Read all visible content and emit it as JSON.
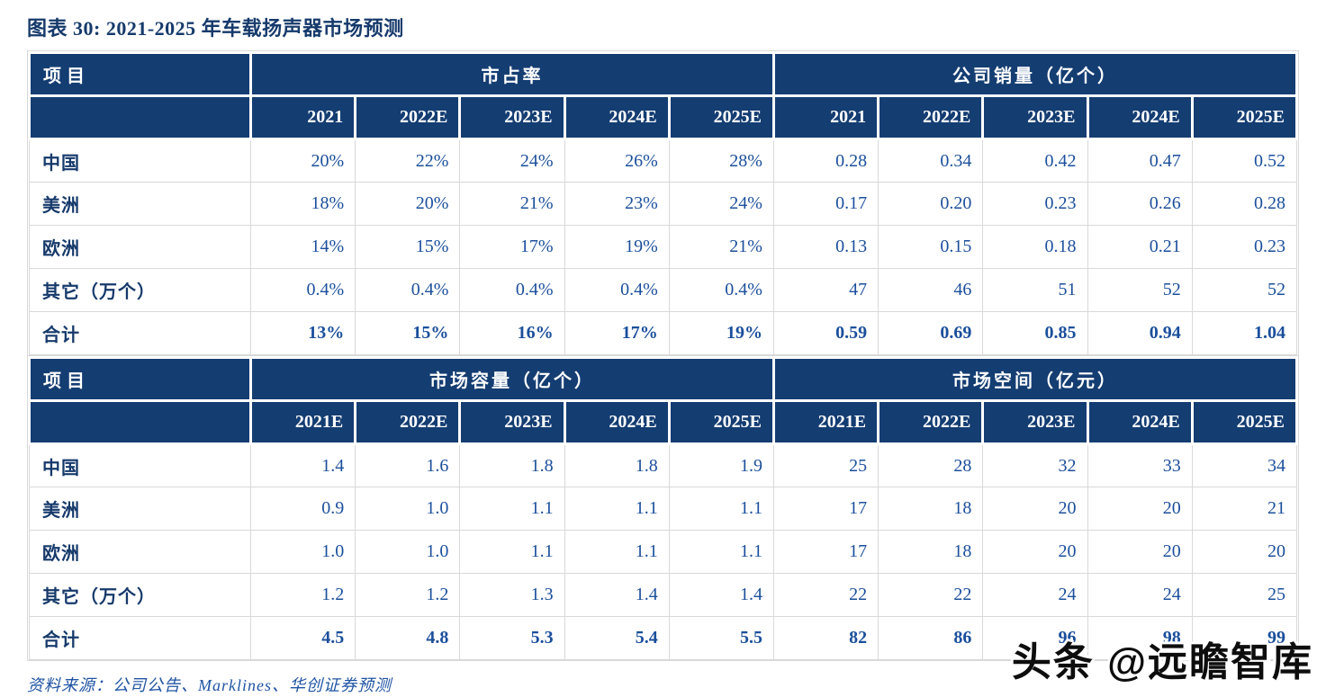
{
  "title": "图表 30: 2021-2025 年车载扬声器市场预测",
  "source_line": "资料来源：公司公告、Marklines、华创证券预测",
  "watermark": "头条 @远瞻智库",
  "colors": {
    "header_bg": "#143D72",
    "header_text": "#FFFFFF",
    "label_text": "#163A6B",
    "value_text": "#1B4F9C",
    "title_text": "#163A6B",
    "source_text": "#1F54A3",
    "grid_line": "#D9D9D9",
    "gap_white": "#FFFFFF"
  },
  "tables": [
    {
      "corner_label": "项目",
      "groups": [
        {
          "label": "市占率",
          "years": [
            "2021",
            "2022E",
            "2023E",
            "2024E",
            "2025E"
          ]
        },
        {
          "label": "公司销量（亿个）",
          "years": [
            "2021",
            "2022E",
            "2023E",
            "2024E",
            "2025E"
          ]
        }
      ],
      "rows": [
        {
          "label": "中国",
          "bold": false,
          "values": [
            [
              "20%",
              "22%",
              "24%",
              "26%",
              "28%"
            ],
            [
              "0.28",
              "0.34",
              "0.42",
              "0.47",
              "0.52"
            ]
          ]
        },
        {
          "label": "美洲",
          "bold": false,
          "values": [
            [
              "18%",
              "20%",
              "21%",
              "23%",
              "24%"
            ],
            [
              "0.17",
              "0.20",
              "0.23",
              "0.26",
              "0.28"
            ]
          ]
        },
        {
          "label": "欧洲",
          "bold": false,
          "values": [
            [
              "14%",
              "15%",
              "17%",
              "19%",
              "21%"
            ],
            [
              "0.13",
              "0.15",
              "0.18",
              "0.21",
              "0.23"
            ]
          ]
        },
        {
          "label": "其它（万个）",
          "bold": false,
          "values": [
            [
              "0.4%",
              "0.4%",
              "0.4%",
              "0.4%",
              "0.4%"
            ],
            [
              "47",
              "46",
              "51",
              "52",
              "52"
            ]
          ]
        },
        {
          "label": "合计",
          "bold": true,
          "values": [
            [
              "13%",
              "15%",
              "16%",
              "17%",
              "19%"
            ],
            [
              "0.59",
              "0.69",
              "0.85",
              "0.94",
              "1.04"
            ]
          ]
        }
      ]
    },
    {
      "corner_label": "项目",
      "groups": [
        {
          "label": "市场容量（亿个）",
          "years": [
            "2021E",
            "2022E",
            "2023E",
            "2024E",
            "2025E"
          ]
        },
        {
          "label": "市场空间（亿元）",
          "years": [
            "2021E",
            "2022E",
            "2023E",
            "2024E",
            "2025E"
          ]
        }
      ],
      "rows": [
        {
          "label": "中国",
          "bold": false,
          "values": [
            [
              "1.4",
              "1.6",
              "1.8",
              "1.8",
              "1.9"
            ],
            [
              "25",
              "28",
              "32",
              "33",
              "34"
            ]
          ]
        },
        {
          "label": "美洲",
          "bold": false,
          "values": [
            [
              "0.9",
              "1.0",
              "1.1",
              "1.1",
              "1.1"
            ],
            [
              "17",
              "18",
              "20",
              "20",
              "21"
            ]
          ]
        },
        {
          "label": "欧洲",
          "bold": false,
          "values": [
            [
              "1.0",
              "1.0",
              "1.1",
              "1.1",
              "1.1"
            ],
            [
              "17",
              "18",
              "20",
              "20",
              "20"
            ]
          ]
        },
        {
          "label": "其它（万个）",
          "bold": false,
          "values": [
            [
              "1.2",
              "1.2",
              "1.3",
              "1.4",
              "1.4"
            ],
            [
              "22",
              "22",
              "24",
              "24",
              "25"
            ]
          ]
        },
        {
          "label": "合计",
          "bold": true,
          "values": [
            [
              "4.5",
              "4.8",
              "5.3",
              "5.4",
              "5.5"
            ],
            [
              "82",
              "86",
              "96",
              "98",
              "99"
            ]
          ]
        }
      ]
    }
  ]
}
